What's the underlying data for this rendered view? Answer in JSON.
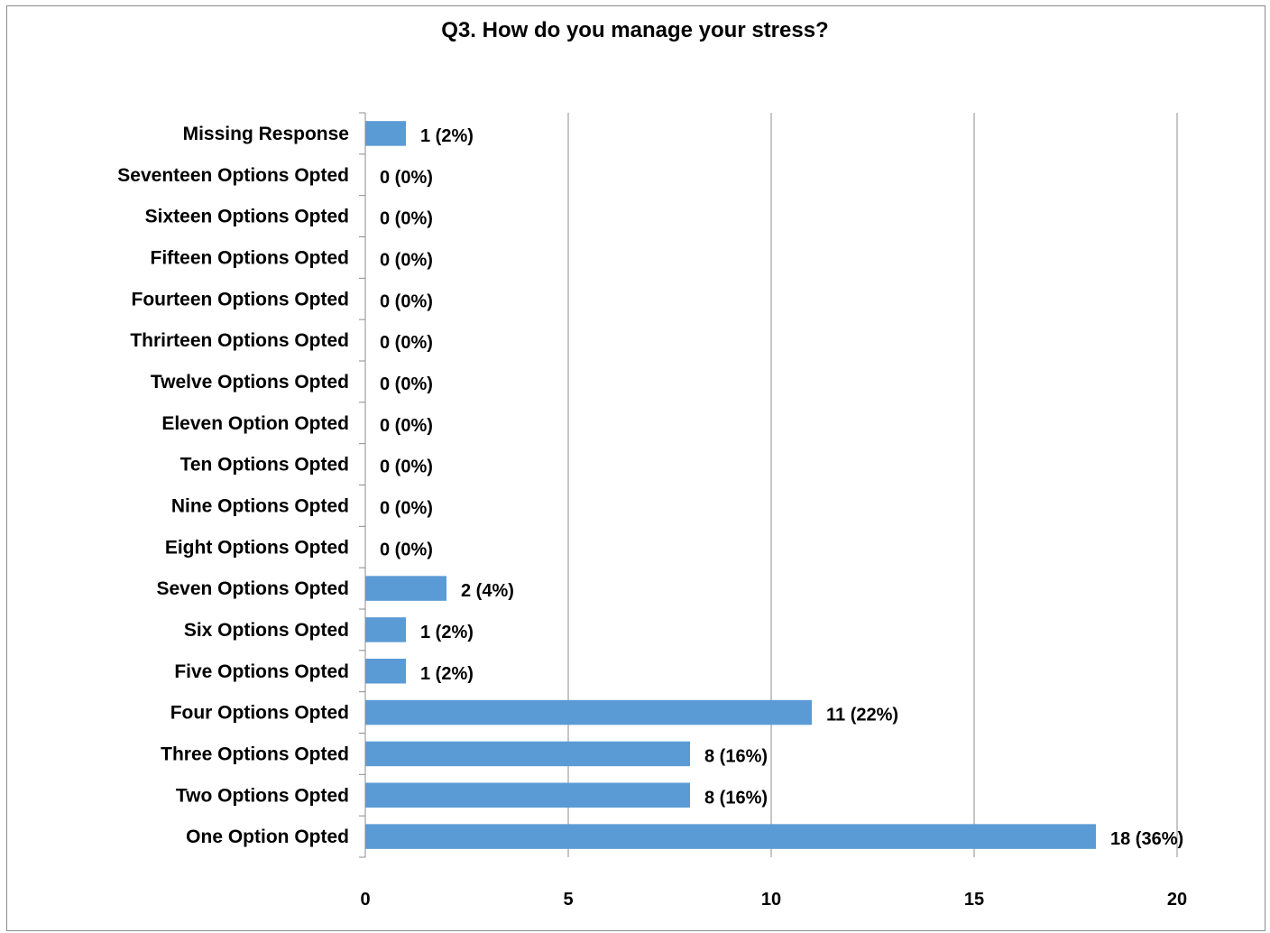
{
  "chart_data": {
    "type": "bar",
    "orientation": "horizontal",
    "title": "Q3. How do you manage your stress?",
    "xlabel": "",
    "ylabel": "",
    "xlim": [
      0,
      20
    ],
    "x_ticks": [
      "0",
      "5",
      "10",
      "15",
      "20"
    ],
    "grid": "vertical",
    "bar_color": "#5b9bd5",
    "categories": [
      "Missing Response",
      "Seventeen Options Opted",
      "Sixteen Options Opted",
      "Fifteen Options Opted",
      "Fourteen Options Opted",
      "Thrirteen Options Opted",
      "Twelve Options Opted",
      "Eleven Option Opted",
      "Ten Options Opted",
      "Nine Options Opted",
      "Eight Options Opted",
      "Seven Options Opted",
      "Six Options Opted",
      "Five Options Opted",
      "Four Options Opted",
      "Three Options Opted",
      "Two Options Opted",
      "One Option Opted"
    ],
    "values": [
      1,
      0,
      0,
      0,
      0,
      0,
      0,
      0,
      0,
      0,
      0,
      2,
      1,
      1,
      11,
      8,
      8,
      18
    ],
    "data_labels": [
      "1 (2%)",
      "0 (0%)",
      "0 (0%)",
      "0 (0%)",
      "0 (0%)",
      "0 (0%)",
      "0 (0%)",
      "0 (0%)",
      "0 (0%)",
      "0 (0%)",
      "0 (0%)",
      "2 (4%)",
      "1 (2%)",
      "1 (2%)",
      "11 (22%)",
      "8 (16%)",
      "8 (16%)",
      "18 (36%)"
    ]
  }
}
